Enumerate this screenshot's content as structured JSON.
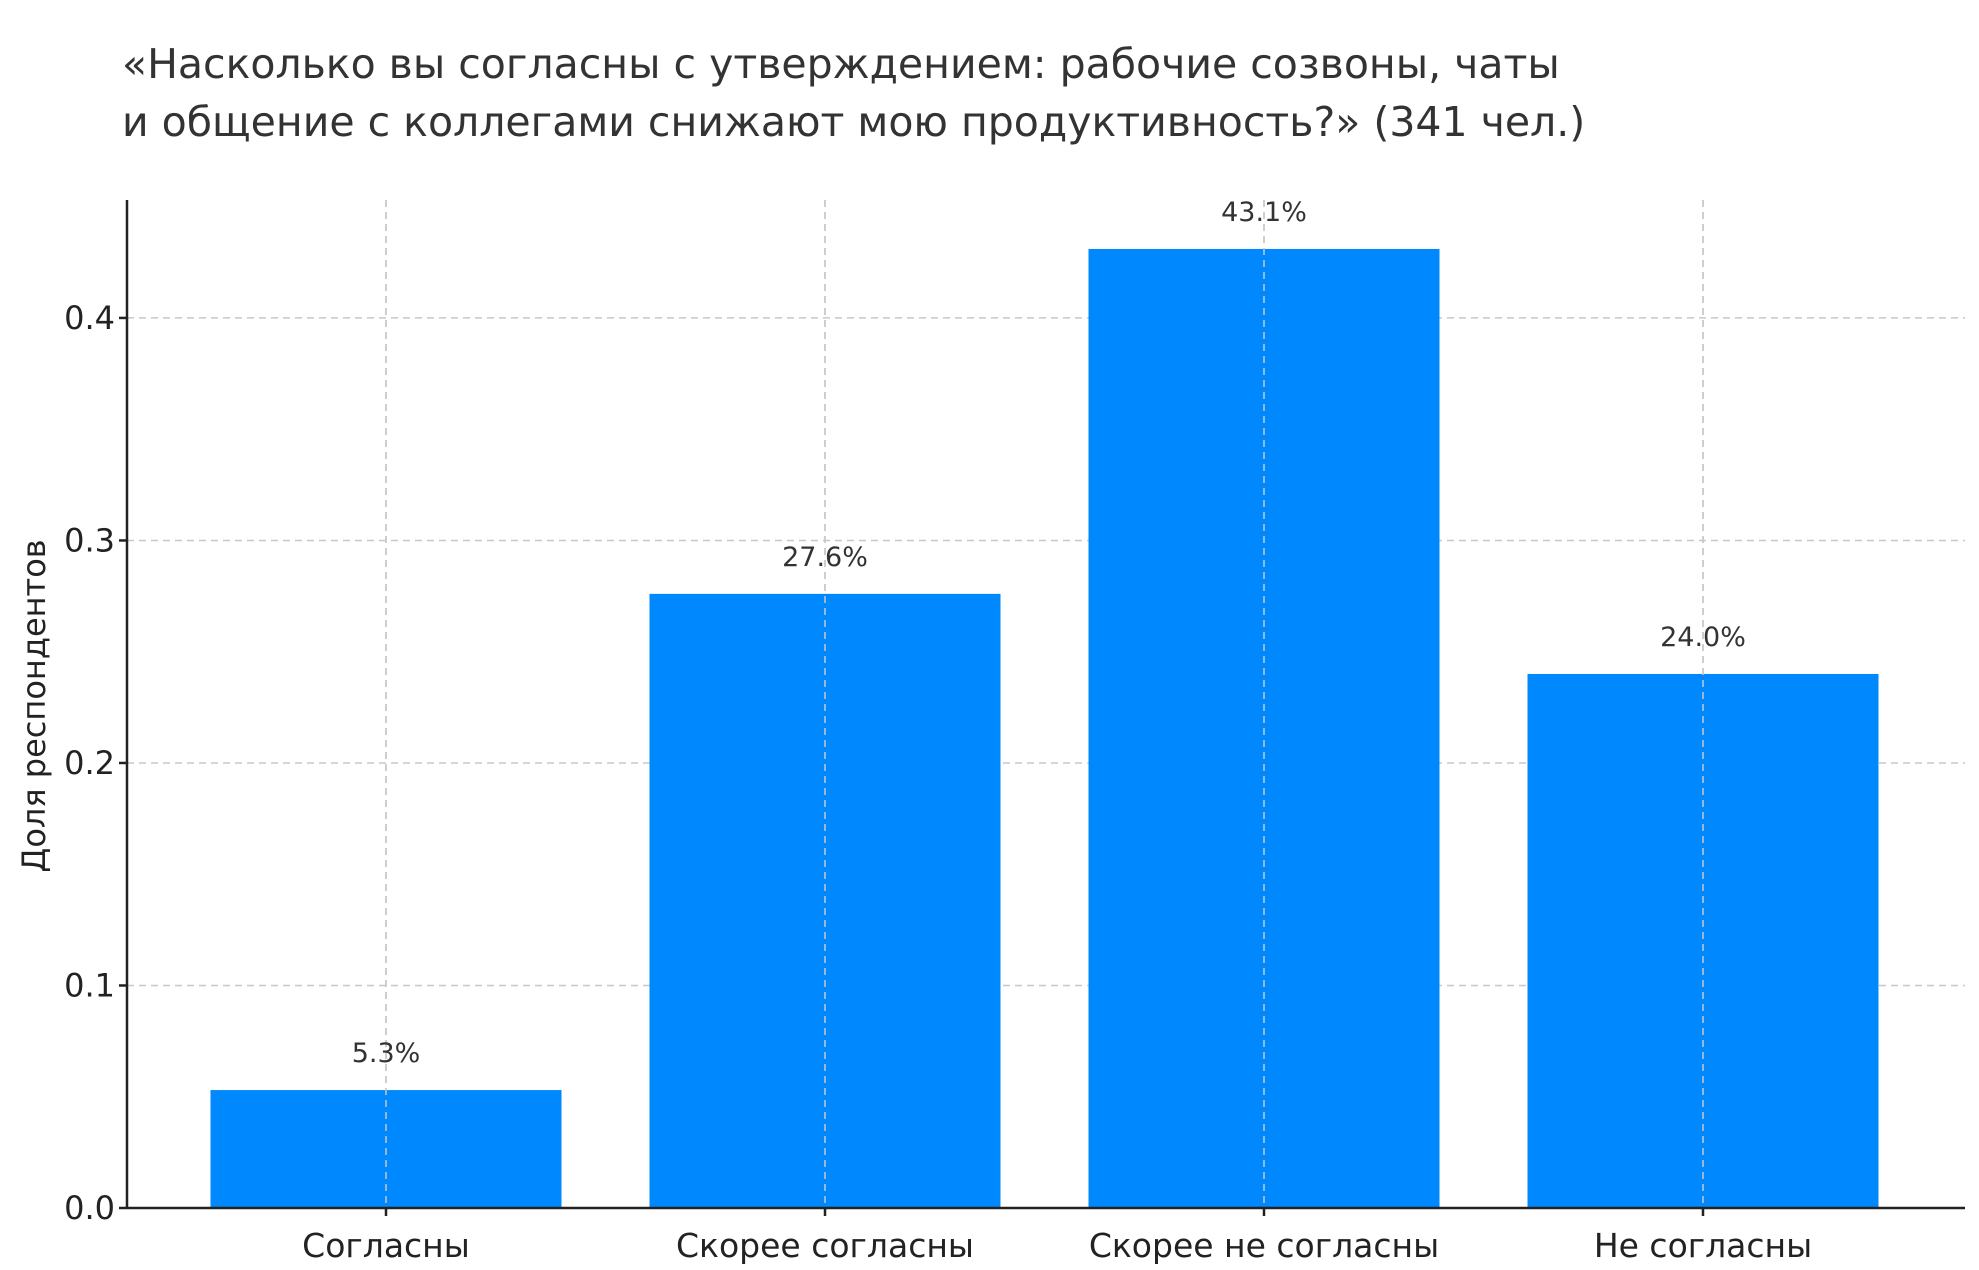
{
  "chart_data": {
    "type": "bar",
    "title_lines": [
      "«Насколько вы согласны с утверждением: рабочие созвоны, чаты",
      "и общение с коллегами снижают мою продуктивность?» (341 чел.)"
    ],
    "categories": [
      "Согласны",
      "Скорее согласны",
      "Скорее не согласны",
      "Не согласны"
    ],
    "values": [
      0.053,
      0.276,
      0.431,
      0.24
    ],
    "value_labels": [
      "5.3%",
      "27.6%",
      "43.1%",
      "24.0%"
    ],
    "xlabel": "",
    "ylabel": "Доля респондентов",
    "ylim": [
      0,
      0.453
    ],
    "yticks": [
      0.0,
      0.1,
      0.2,
      0.3,
      0.4
    ],
    "ytick_labels": [
      "0.0",
      "0.1",
      "0.2",
      "0.3",
      "0.4"
    ],
    "grid": true,
    "bar_color": "#0088ff"
  }
}
